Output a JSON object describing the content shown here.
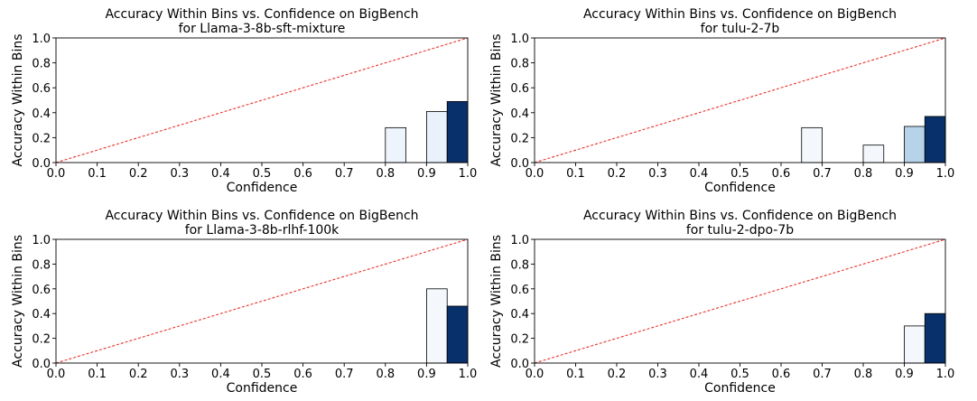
{
  "figure": {
    "background": "#ffffff",
    "diagonal_color": "#e8352c"
  },
  "chart_data": [
    {
      "type": "bar",
      "title": "Accuracy Within Bins vs. Confidence on BigBench",
      "subtitle": "for Llama-3-8b-sft-mixture",
      "xlabel": "Confidence",
      "ylabel": "Accuracy Within Bins",
      "xlim": [
        0,
        1
      ],
      "ylim": [
        0,
        1
      ],
      "xticks": [
        "0.0",
        "0.1",
        "0.2",
        "0.3",
        "0.4",
        "0.5",
        "0.6",
        "0.7",
        "0.8",
        "0.9",
        "1.0"
      ],
      "yticks": [
        "0.0",
        "0.2",
        "0.4",
        "0.6",
        "0.8",
        "1.0"
      ],
      "grid": false,
      "reference_line": "y = x",
      "bars": [
        {
          "x0": 0.8,
          "x1": 0.85,
          "value": 0.28,
          "color": "#eef4fc"
        },
        {
          "x0": 0.9,
          "x1": 0.95,
          "value": 0.41,
          "color": "#e9f1fb"
        },
        {
          "x0": 0.95,
          "x1": 1.0,
          "value": 0.49,
          "color": "#08306b"
        }
      ]
    },
    {
      "type": "bar",
      "title": "Accuracy Within Bins vs. Confidence on BigBench",
      "subtitle": "for tulu-2-7b",
      "xlabel": "Confidence",
      "ylabel": "Accuracy Within Bins",
      "xlim": [
        0,
        1
      ],
      "ylim": [
        0,
        1
      ],
      "xticks": [
        "0.0",
        "0.1",
        "0.2",
        "0.3",
        "0.4",
        "0.5",
        "0.6",
        "0.7",
        "0.8",
        "0.9",
        "1.0"
      ],
      "yticks": [
        "0.0",
        "0.2",
        "0.4",
        "0.6",
        "0.8",
        "1.0"
      ],
      "grid": false,
      "reference_line": "y = x",
      "bars": [
        {
          "x0": 0.65,
          "x1": 0.7,
          "value": 0.28,
          "color": "#f4f8fd"
        },
        {
          "x0": 0.8,
          "x1": 0.85,
          "value": 0.14,
          "color": "#f4f8fd"
        },
        {
          "x0": 0.9,
          "x1": 0.95,
          "value": 0.29,
          "color": "#b7d3ea"
        },
        {
          "x0": 0.95,
          "x1": 1.0,
          "value": 0.37,
          "color": "#08306b"
        }
      ]
    },
    {
      "type": "bar",
      "title": "Accuracy Within Bins vs. Confidence on BigBench",
      "subtitle": "for Llama-3-8b-rlhf-100k",
      "xlabel": "Confidence",
      "ylabel": "Accuracy Within Bins",
      "xlim": [
        0,
        1
      ],
      "ylim": [
        0,
        1
      ],
      "xticks": [
        "0.0",
        "0.1",
        "0.2",
        "0.3",
        "0.4",
        "0.5",
        "0.6",
        "0.7",
        "0.8",
        "0.9",
        "1.0"
      ],
      "yticks": [
        "0.0",
        "0.2",
        "0.4",
        "0.6",
        "0.8",
        "1.0"
      ],
      "grid": false,
      "reference_line": "y = x",
      "bars": [
        {
          "x0": 0.9,
          "x1": 0.95,
          "value": 0.6,
          "color": "#f4f8fd"
        },
        {
          "x0": 0.95,
          "x1": 1.0,
          "value": 0.46,
          "color": "#08306b"
        }
      ]
    },
    {
      "type": "bar",
      "title": "Accuracy Within Bins vs. Confidence on BigBench",
      "subtitle": "for tulu-2-dpo-7b",
      "xlabel": "Confidence",
      "ylabel": "Accuracy Within Bins",
      "xlim": [
        0,
        1
      ],
      "ylim": [
        0,
        1
      ],
      "xticks": [
        "0.0",
        "0.1",
        "0.2",
        "0.3",
        "0.4",
        "0.5",
        "0.6",
        "0.7",
        "0.8",
        "0.9",
        "1.0"
      ],
      "yticks": [
        "0.0",
        "0.2",
        "0.4",
        "0.6",
        "0.8",
        "1.0"
      ],
      "grid": false,
      "reference_line": "y = x",
      "bars": [
        {
          "x0": 0.9,
          "x1": 0.95,
          "value": 0.3,
          "color": "#f4f8fd"
        },
        {
          "x0": 0.95,
          "x1": 1.0,
          "value": 0.4,
          "color": "#08306b"
        }
      ]
    }
  ]
}
